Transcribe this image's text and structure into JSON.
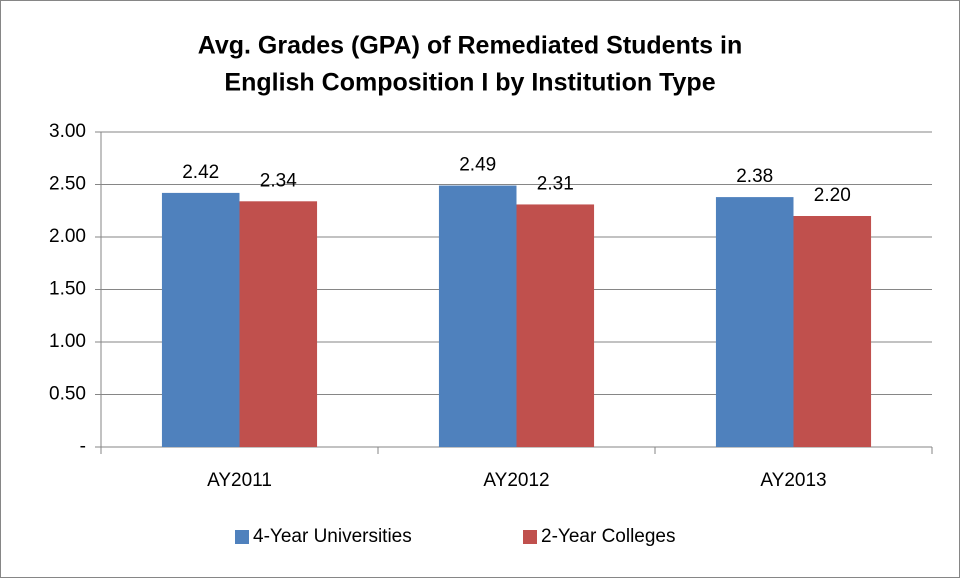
{
  "chart_data": {
    "type": "bar",
    "title": [
      "Avg. Grades (GPA) of Remediated Students in",
      "English Composition I by Institution Type"
    ],
    "categories": [
      "AY2011",
      "AY2012",
      "AY2013"
    ],
    "series": [
      {
        "name": "4-Year Universities",
        "color": "#4f81bd",
        "values": [
          2.42,
          2.49,
          2.38
        ],
        "value_labels": [
          "2.42",
          "2.49",
          "2.38"
        ]
      },
      {
        "name": "2-Year Colleges",
        "color": "#c0504d",
        "values": [
          2.34,
          2.31,
          2.2
        ],
        "value_labels": [
          "2.34",
          "2.31",
          "2.20"
        ]
      }
    ],
    "ylim": [
      0,
      3
    ],
    "yticks": [
      {
        "value": 0,
        "label": "-"
      },
      {
        "value": 0.5,
        "label": "0.50"
      },
      {
        "value": 1,
        "label": "1.00"
      },
      {
        "value": 1.5,
        "label": "1.50"
      },
      {
        "value": 2,
        "label": "2.00"
      },
      {
        "value": 2.5,
        "label": "2.50"
      },
      {
        "value": 3,
        "label": "3.00"
      }
    ],
    "grid": true,
    "legend": "bottom"
  }
}
